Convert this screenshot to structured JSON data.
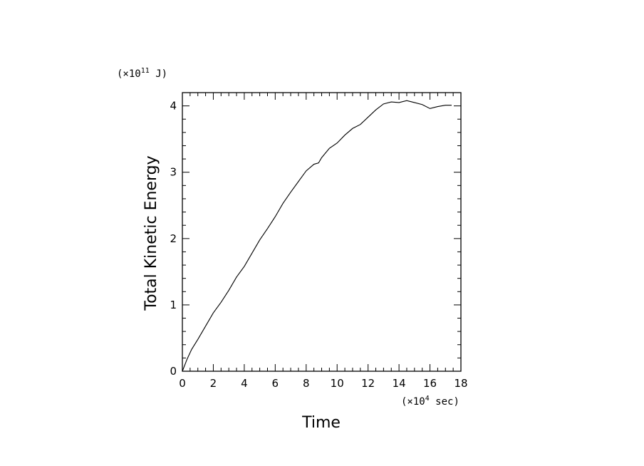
{
  "chart_data": {
    "type": "line",
    "xlabel": "Time",
    "ylabel": "Total Kinetic Energy",
    "x_unit": {
      "prefix": "(×10",
      "exp": "4",
      "suffix": " sec)"
    },
    "y_unit": {
      "prefix": "(×10",
      "exp": "11",
      "suffix": " J)"
    },
    "xlim": [
      0,
      18
    ],
    "ylim": [
      0,
      4.2
    ],
    "x_major_ticks": [
      0,
      2,
      4,
      6,
      8,
      10,
      12,
      14,
      16,
      18
    ],
    "x_tick_labels": [
      "0",
      "2",
      "4",
      "6",
      "8",
      "10",
      "12",
      "14",
      "16",
      "18"
    ],
    "y_major_ticks": [
      0,
      1,
      2,
      3,
      4
    ],
    "y_tick_labels": [
      "0",
      "1",
      "2",
      "3",
      "4"
    ],
    "x_minor_step": 0.5,
    "y_minor_step": 0.2,
    "grid": false,
    "legend": "none",
    "series": [
      {
        "x": [
          0,
          0.3,
          0.6,
          1.0,
          1.5,
          2.0,
          2.5,
          3.0,
          3.5,
          4.0,
          4.5,
          5.0,
          5.5,
          6.0,
          6.5,
          7.0,
          7.5,
          8.0,
          8.5,
          8.8,
          9.0,
          9.5,
          10.0,
          10.5,
          11.0,
          11.5,
          12.0,
          12.5,
          13.0,
          13.5,
          14.0,
          14.5,
          15.0,
          15.5,
          16.0,
          16.5,
          17.0,
          17.4
        ],
        "y": [
          0,
          0.18,
          0.33,
          0.48,
          0.68,
          0.88,
          1.04,
          1.22,
          1.42,
          1.58,
          1.78,
          1.98,
          2.15,
          2.33,
          2.53,
          2.7,
          2.86,
          3.02,
          3.12,
          3.14,
          3.22,
          3.36,
          3.44,
          3.56,
          3.66,
          3.72,
          3.83,
          3.94,
          4.03,
          4.06,
          4.05,
          4.08,
          4.05,
          4.02,
          3.96,
          3.99,
          4.01,
          4.01
        ]
      }
    ]
  }
}
